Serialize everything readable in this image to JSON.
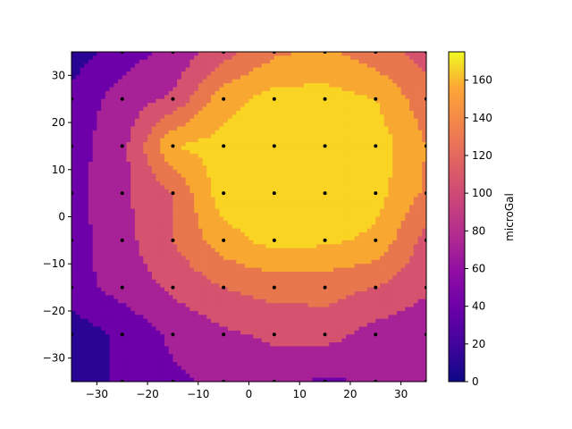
{
  "chart_data": {
    "type": "heatmap",
    "title": "",
    "xlabel": "",
    "ylabel": "",
    "xlim": [
      -35,
      35
    ],
    "ylim": [
      -35,
      35
    ],
    "x_ticks": [
      -30,
      -20,
      -10,
      0,
      10,
      20,
      30
    ],
    "y_ticks": [
      -30,
      -20,
      -10,
      0,
      10,
      20,
      30
    ],
    "grid": false,
    "colormap": "plasma",
    "colorbar": {
      "label": "microGal",
      "range": [
        0,
        175
      ],
      "ticks": [
        0,
        20,
        40,
        60,
        80,
        100,
        120,
        140,
        160
      ]
    },
    "contour_levels": [
      0,
      25,
      50,
      75,
      100,
      125,
      150,
      175
    ],
    "over_range_color": "#ffffff",
    "contour_fills": [
      {
        "level_range": [
          0,
          25
        ],
        "color": "#2a0593"
      },
      {
        "level_range": [
          25,
          50
        ],
        "color": "#6d00a8"
      },
      {
        "level_range": [
          50,
          75
        ],
        "color": "#a72197"
      },
      {
        "level_range": [
          75,
          100
        ],
        "color": "#d5536f"
      },
      {
        "level_range": [
          100,
          125
        ],
        "color": "#e8774d"
      },
      {
        "level_range": [
          125,
          150
        ],
        "color": "#f8a831"
      },
      {
        "level_range": [
          150,
          175
        ],
        "color": "#f9d423"
      },
      {
        "level_range": [
          "above",
          175
        ],
        "color": "#ffffff"
      }
    ],
    "grid_x": [
      -35,
      -25,
      -15,
      -5,
      5,
      15,
      25,
      35
    ],
    "grid_y": [
      35,
      25,
      15,
      5,
      -5,
      -15,
      -25,
      -35
    ],
    "values": [
      [
        10,
        40,
        55,
        90,
        120,
        130,
        110,
        90
      ],
      [
        35,
        60,
        80,
        140,
        160,
        160,
        150,
        110
      ],
      [
        40,
        65,
        150,
        160,
        170,
        160,
        165,
        125
      ],
      [
        40,
        70,
        100,
        165,
        165,
        170,
        160,
        120
      ],
      [
        40,
        65,
        100,
        140,
        160,
        155,
        145,
        90
      ],
      [
        40,
        60,
        80,
        100,
        110,
        110,
        100,
        80
      ],
      [
        10,
        30,
        55,
        70,
        80,
        85,
        65,
        55
      ],
      [
        10,
        30,
        45,
        55,
        60,
        45,
        55,
        50
      ]
    ],
    "sample_points_marked": true
  }
}
